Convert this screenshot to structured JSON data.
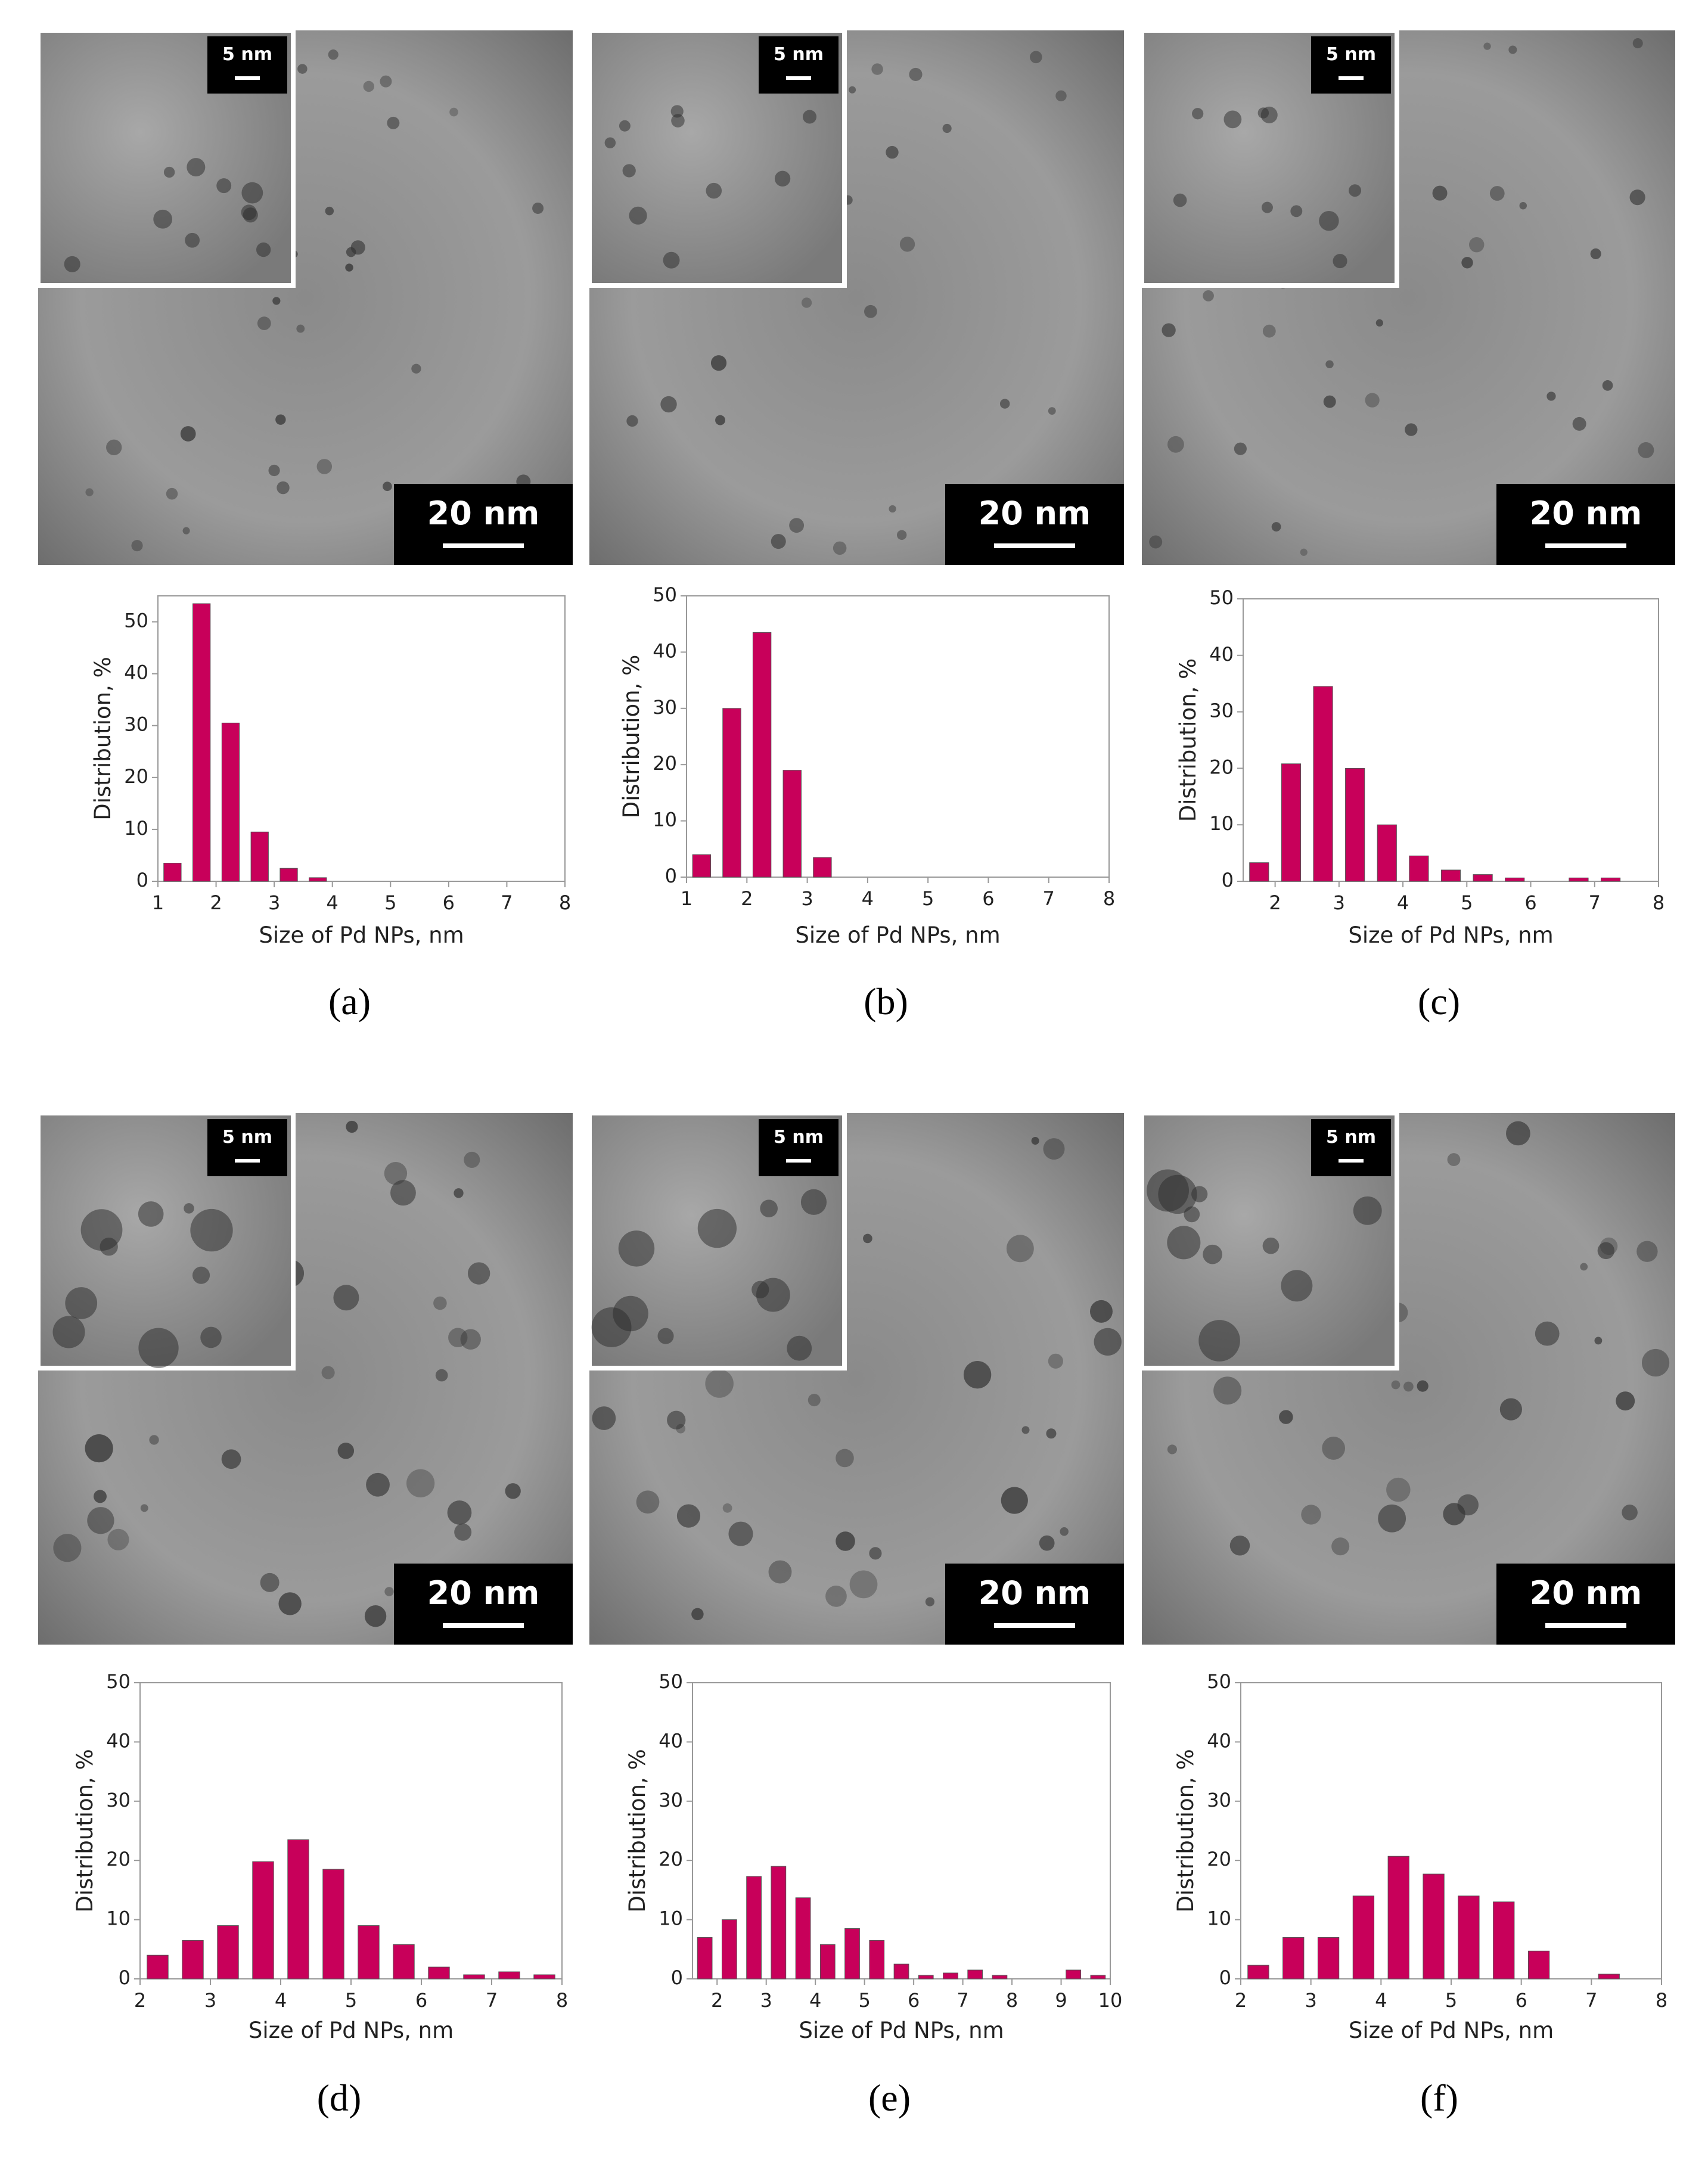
{
  "chart_data": [
    {
      "type": "histogram",
      "panel_label": "(a)",
      "micrograph": {
        "scale_bar": "20 nm",
        "inset_scale_bar": "5 nm"
      },
      "xlabel": "Size of Pd NPs, nm",
      "ylabel": "Distribution, %",
      "color": "#c8005a",
      "bins": [
        1,
        1.5,
        2,
        2.5,
        3,
        3.5,
        4
      ],
      "values": [
        3.5,
        53.5,
        30.5,
        9.5,
        2.5,
        0.7
      ],
      "xlim": [
        1,
        8
      ],
      "xticks": [
        1,
        2,
        3,
        4,
        5,
        6,
        7,
        8
      ],
      "ylim": [
        0,
        55
      ],
      "yticks": [
        0,
        10,
        20,
        30,
        40,
        50
      ]
    },
    {
      "type": "histogram",
      "panel_label": "(b)",
      "micrograph": {
        "scale_bar": "20 nm",
        "inset_scale_bar": "5 nm"
      },
      "xlabel": "Size of Pd NPs, nm",
      "ylabel": "Distribution, %",
      "color": "#c8005a",
      "bins": [
        1,
        1.5,
        2,
        2.5,
        3,
        3.5
      ],
      "values": [
        4,
        30,
        43.5,
        19,
        3.5
      ],
      "xlim": [
        1,
        8
      ],
      "xticks": [
        1,
        2,
        3,
        4,
        5,
        6,
        7,
        8
      ],
      "ylim": [
        0,
        50
      ],
      "yticks": [
        0,
        10,
        20,
        30,
        40,
        50
      ]
    },
    {
      "type": "histogram",
      "panel_label": "(c)",
      "micrograph": {
        "scale_bar": "20 nm",
        "inset_scale_bar": "5 nm"
      },
      "xlabel": "Size of Pd NPs, nm",
      "ylabel": "Distribution, %",
      "color": "#c8005a",
      "bins": [
        1.5,
        2,
        2.5,
        3,
        3.5,
        4,
        4.5,
        5,
        5.5,
        6,
        6.5,
        7,
        7.5
      ],
      "values": [
        3.3,
        20.8,
        34.5,
        20,
        10,
        4.5,
        2,
        1.2,
        0.6,
        0,
        0.6,
        0.6
      ],
      "xlim": [
        1.5,
        8
      ],
      "xticks": [
        2,
        3,
        4,
        5,
        6,
        7,
        8
      ],
      "ylim": [
        0,
        50
      ],
      "yticks": [
        0,
        10,
        20,
        30,
        40,
        50
      ]
    },
    {
      "type": "histogram",
      "panel_label": "(d)",
      "micrograph": {
        "scale_bar": "20 nm",
        "inset_scale_bar": "5 nm"
      },
      "xlabel": "Size of Pd NPs, nm",
      "ylabel": "Distribution, %",
      "color": "#c8005a",
      "bins": [
        2,
        2.5,
        3,
        3.5,
        4,
        4.5,
        5,
        5.5,
        6,
        6.5,
        7,
        7.5,
        8
      ],
      "values": [
        4,
        6.5,
        9,
        19.8,
        23.5,
        18.5,
        9,
        5.8,
        2,
        0.7,
        1.2,
        0.7
      ],
      "xlim": [
        2,
        8
      ],
      "xticks": [
        2,
        3,
        4,
        5,
        6,
        7,
        8
      ],
      "ylim": [
        0,
        50
      ],
      "yticks": [
        0,
        10,
        20,
        30,
        40,
        50
      ]
    },
    {
      "type": "histogram",
      "panel_label": "(e)",
      "micrograph": {
        "scale_bar": "20 nm",
        "inset_scale_bar": "5 nm"
      },
      "xlabel": "Size of Pd NPs, nm",
      "ylabel": "Distribution, %",
      "color": "#c8005a",
      "bins": [
        1.5,
        2,
        2.5,
        3,
        3.5,
        4,
        4.5,
        5,
        5.5,
        6,
        6.5,
        7,
        7.5,
        8,
        8.5,
        9,
        9.5,
        10
      ],
      "values": [
        7,
        10,
        17.3,
        19,
        13.7,
        5.8,
        8.5,
        6.5,
        2.5,
        0.6,
        1,
        1.5,
        0.6,
        0,
        0,
        1.5,
        0.6
      ],
      "xlim": [
        1.5,
        10
      ],
      "xticks": [
        2,
        3,
        4,
        5,
        6,
        7,
        8,
        9,
        10
      ],
      "ylim": [
        0,
        50
      ],
      "yticks": [
        0,
        10,
        20,
        30,
        40,
        50
      ]
    },
    {
      "type": "histogram",
      "panel_label": "(f)",
      "micrograph": {
        "scale_bar": "20 nm",
        "inset_scale_bar": "5 nm"
      },
      "xlabel": "Size of Pd NPs, nm",
      "ylabel": "Distribution, %",
      "color": "#c8005a",
      "bins": [
        2,
        2.5,
        3,
        3.5,
        4,
        4.5,
        5,
        5.5,
        6,
        6.5,
        7,
        7.5
      ],
      "values": [
        2.3,
        7,
        7,
        14,
        20.7,
        17.7,
        14,
        13,
        4.7,
        0,
        0.8
      ],
      "xlim": [
        2,
        8
      ],
      "xticks": [
        2,
        3,
        4,
        5,
        6,
        7,
        8
      ],
      "ylim": [
        0,
        50
      ],
      "yticks": [
        0,
        10,
        20,
        30,
        40,
        50
      ]
    }
  ]
}
